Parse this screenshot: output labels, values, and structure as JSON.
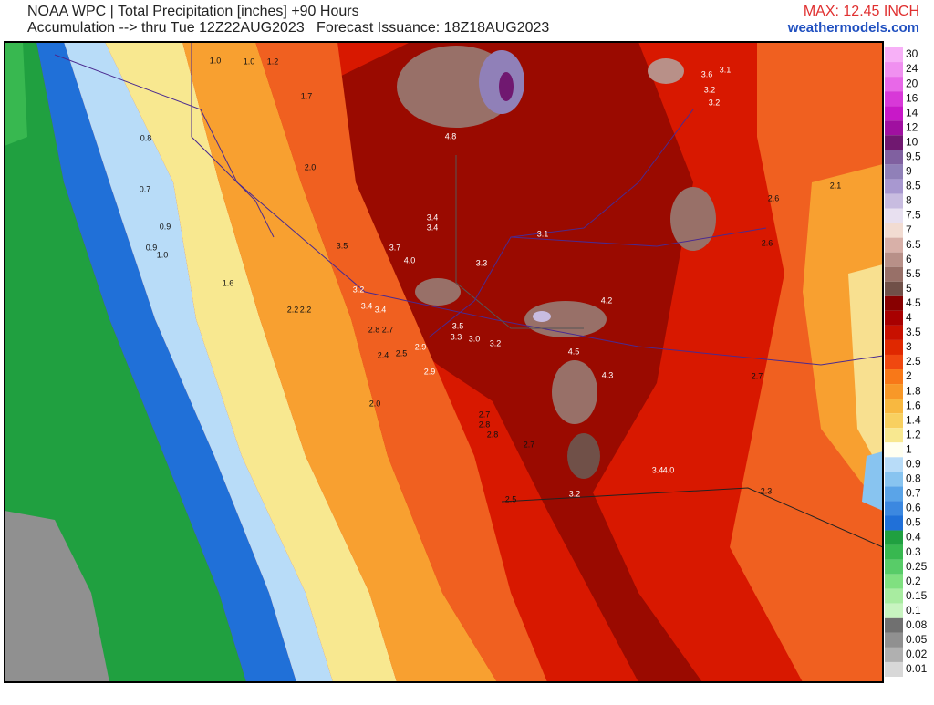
{
  "header": {
    "title_line1": "NOAA WPC | Total Precipitation [inches] +90 Hours",
    "title_line2": "Accumulation --> thru Tue 12Z22AUG2023   Forecast Issuance: 18Z18AUG2023",
    "max": "MAX: 12.45 INCH",
    "site": "weathermodels.com"
  },
  "legend": {
    "levels": [
      {
        "label": "30",
        "color": "#f7b0f7"
      },
      {
        "label": "24",
        "color": "#f090f0"
      },
      {
        "label": "20",
        "color": "#e868e8"
      },
      {
        "label": "16",
        "color": "#d838d8"
      },
      {
        "label": "14",
        "color": "#c818c8"
      },
      {
        "label": "12",
        "color": "#a010a0"
      },
      {
        "label": "10",
        "color": "#701870"
      },
      {
        "label": "9.5",
        "color": "#8060a0"
      },
      {
        "label": "9",
        "color": "#9080b8"
      },
      {
        "label": "8.5",
        "color": "#a898d0"
      },
      {
        "label": "8",
        "color": "#c8bce0"
      },
      {
        "label": "7.5",
        "color": "#e8e0f0"
      },
      {
        "label": "7",
        "color": "#f2dcd2"
      },
      {
        "label": "6.5",
        "color": "#d8b0a8"
      },
      {
        "label": "6",
        "color": "#b89088"
      },
      {
        "label": "5.5",
        "color": "#987068"
      },
      {
        "label": "5",
        "color": "#705048"
      },
      {
        "label": "4.5",
        "color": "#880000"
      },
      {
        "label": "4",
        "color": "#a80000"
      },
      {
        "label": "3.5",
        "color": "#c81000"
      },
      {
        "label": "3",
        "color": "#e02800"
      },
      {
        "label": "2.5",
        "color": "#f04810"
      },
      {
        "label": "2",
        "color": "#f87818"
      },
      {
        "label": "1.8",
        "color": "#f89828"
      },
      {
        "label": "1.6",
        "color": "#f8b840"
      },
      {
        "label": "1.4",
        "color": "#f8d060"
      },
      {
        "label": "1.2",
        "color": "#f8e890"
      },
      {
        "label": "1",
        "color": "#fffff0"
      },
      {
        "label": "0.9",
        "color": "#b8dcf8"
      },
      {
        "label": "0.8",
        "color": "#88c4f0"
      },
      {
        "label": "0.7",
        "color": "#5aa4e8"
      },
      {
        "label": "0.6",
        "color": "#3c88e0"
      },
      {
        "label": "0.5",
        "color": "#2070d8"
      },
      {
        "label": "0.4",
        "color": "#20a040"
      },
      {
        "label": "0.3",
        "color": "#38b850"
      },
      {
        "label": "0.25",
        "color": "#58cc68"
      },
      {
        "label": "0.2",
        "color": "#80e080"
      },
      {
        "label": "0.15",
        "color": "#a8eca0"
      },
      {
        "label": "0.1",
        "color": "#c8f4c0"
      },
      {
        "label": "0.08",
        "color": "#707070"
      },
      {
        "label": "0.05",
        "color": "#909090"
      },
      {
        "label": "0.02",
        "color": "#b0b0b0"
      },
      {
        "label": "0.01",
        "color": "#d8d8d8"
      }
    ]
  },
  "map": {
    "labels": [
      "1.0",
      "1.0",
      "1.2",
      "1.7",
      "0.8",
      "4.8",
      "2.0",
      "0.7",
      "3.4",
      "3.4",
      "0.9",
      "0.9",
      "1.0",
      "3.5",
      "3.7",
      "4.0",
      "3.3",
      "1.6",
      "3.2",
      "3.4",
      "3.4",
      "2.2",
      "2.2",
      "4.2",
      "3.5",
      "3.3",
      "3.0",
      "3.2",
      "2.9",
      "4.5",
      "2.9",
      "4.3",
      "2.0",
      "2.7",
      "2.8",
      "2.8",
      "2.7",
      "3.1",
      "2.6",
      "2.6",
      "2.1",
      "3.6",
      "3.1",
      "3.2",
      "3.2",
      "2.7",
      "3.4",
      "4.0",
      "3.2",
      "2.3",
      "2.5",
      "2.4",
      "2.5",
      "2.7",
      "2.8"
    ]
  }
}
